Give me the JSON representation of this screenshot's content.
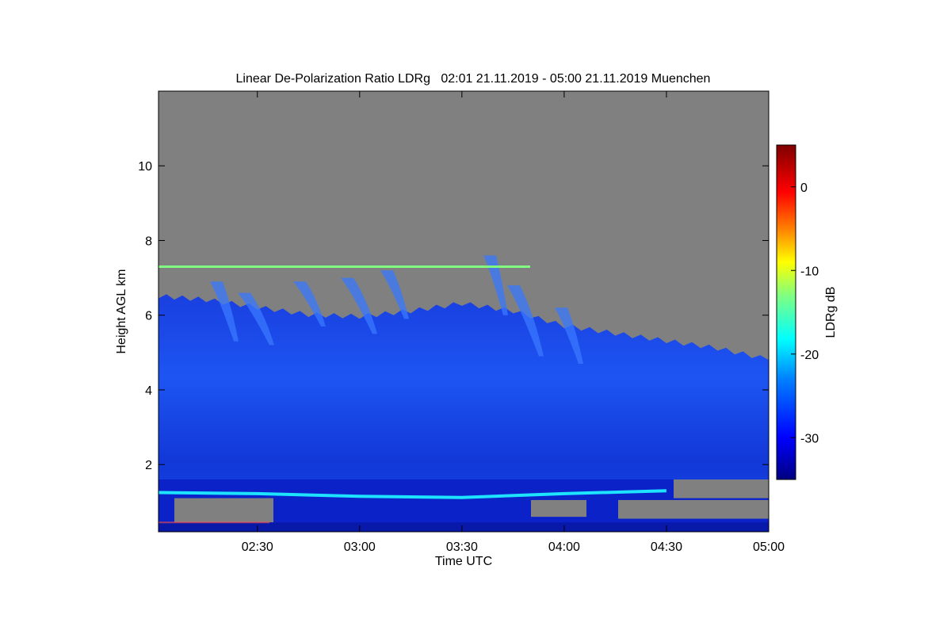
{
  "chart_data": {
    "type": "heatmap",
    "title": "Linear De-Polarization Ratio LDRg   02:01 21.11.2019 - 05:00 21.11.2019 Muenchen",
    "xlabel": "Time UTC",
    "ylabel": "Height AGL km",
    "x_range": [
      "02:01",
      "05:00"
    ],
    "x_ticks": [
      "02:30",
      "03:00",
      "03:30",
      "04:00",
      "04:30",
      "05:00"
    ],
    "ylim": [
      0.2,
      12
    ],
    "y_ticks": [
      2,
      4,
      6,
      8,
      10
    ],
    "colorbar": {
      "label": "LDRg dB",
      "range": [
        -35,
        5
      ],
      "ticks": [
        0,
        -10,
        -20,
        -30
      ],
      "colormap": [
        "#000080",
        "#0000ff",
        "#0080ff",
        "#00ffff",
        "#80ff80",
        "#ffff00",
        "#ff8000",
        "#ff0000",
        "#800000"
      ]
    },
    "no_data_color": "#808080",
    "cloud_top_km": [
      {
        "time": "02:01",
        "top": 6.5
      },
      {
        "time": "02:15",
        "top": 6.4
      },
      {
        "time": "02:30",
        "top": 6.2
      },
      {
        "time": "02:45",
        "top": 6.0
      },
      {
        "time": "03:00",
        "top": 5.95
      },
      {
        "time": "03:15",
        "top": 6.1
      },
      {
        "time": "03:30",
        "top": 6.3
      },
      {
        "time": "03:45",
        "top": 6.1
      },
      {
        "time": "04:00",
        "top": 5.7
      },
      {
        "time": "04:15",
        "top": 5.5
      },
      {
        "time": "04:30",
        "top": 5.3
      },
      {
        "time": "04:45",
        "top": 5.1
      },
      {
        "time": "05:00",
        "top": 4.8
      }
    ],
    "cloud_base_km": 1.6,
    "melting_layer_km": [
      {
        "time": "02:01",
        "height": 1.25
      },
      {
        "time": "02:30",
        "height": 1.22
      },
      {
        "time": "03:00",
        "height": 1.15
      },
      {
        "time": "03:30",
        "height": 1.12
      },
      {
        "time": "04:00",
        "height": 1.22
      },
      {
        "time": "04:30",
        "height": 1.3
      }
    ],
    "artifact_line": {
      "height_km": 7.3,
      "start": "02:01",
      "end": "03:50",
      "ldr_db": -15
    }
  }
}
